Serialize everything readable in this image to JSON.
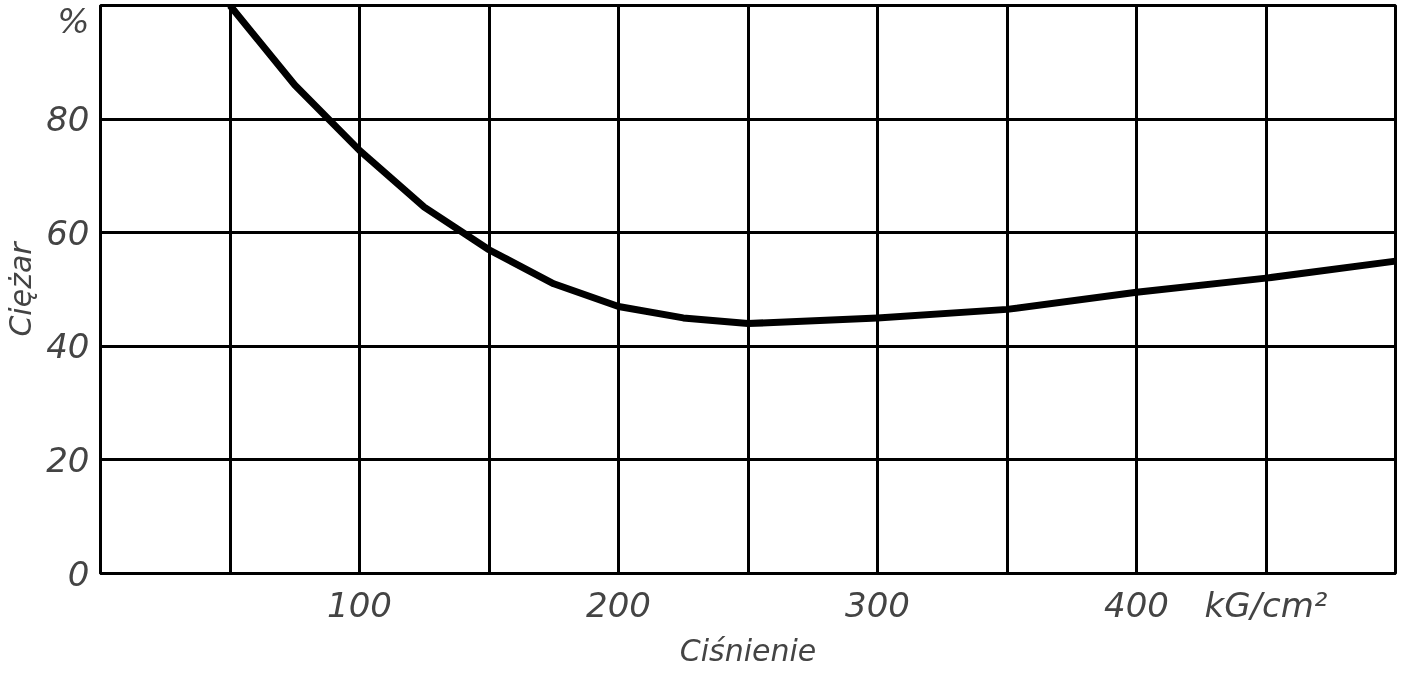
{
  "chart_data": {
    "type": "line",
    "xlabel": "Ciśnienie",
    "ylabel": "Ciężar",
    "x": [
      50,
      75,
      100,
      125,
      150,
      175,
      200,
      225,
      250,
      300,
      350,
      400,
      450,
      500
    ],
    "series": [
      {
        "color": "#000000",
        "values": [
          100,
          86,
          74.5,
          64.5,
          57,
          51,
          47,
          45,
          44,
          45,
          46.5,
          49.5,
          52,
          55
        ]
      }
    ],
    "xlim": [
      0,
      500
    ],
    "xticks": [
      {
        "value": 0,
        "label": null
      },
      {
        "value": 50,
        "label": null
      },
      100,
      {
        "value": 150,
        "label": null
      },
      200,
      {
        "value": 250,
        "label": null
      },
      300,
      {
        "value": 350,
        "label": null
      },
      400,
      {
        "value": 450,
        "label": "kG/cm²"
      },
      {
        "value": 500,
        "label": null
      }
    ],
    "ylim": [
      0,
      100
    ],
    "yticks": [
      0,
      20,
      40,
      60,
      80,
      {
        "value": 100,
        "label": "%"
      }
    ],
    "grid": true,
    "marker": "none",
    "line_style": "solid"
  }
}
